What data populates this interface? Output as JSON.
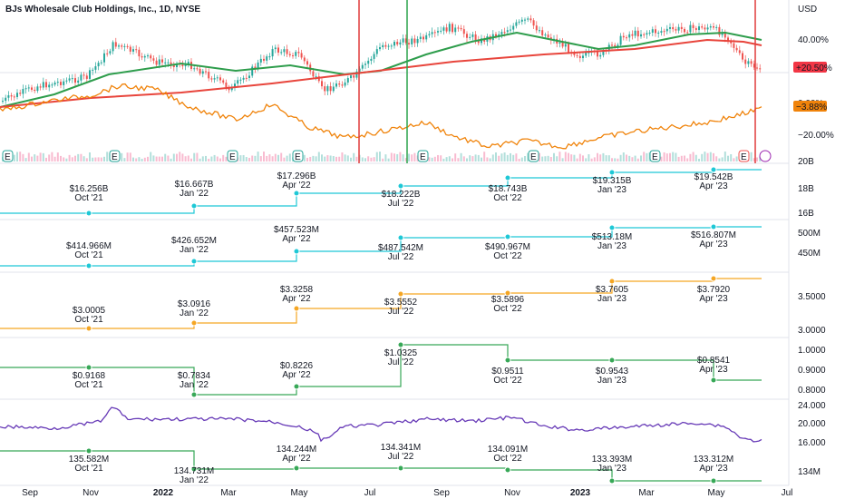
{
  "header": {
    "title": "BJs Wholesale Club Holdings, Inc., 1D, NYSE",
    "currency": "USD"
  },
  "colors": {
    "up": "#26a69a",
    "down": "#ef5350",
    "sma_short": "#2e9d4c",
    "sma_long": "#e8453c",
    "orange": "#f0830a",
    "revenue": "#1ec8d6",
    "eps": "#f5a623",
    "green_step": "#37a857",
    "purple": "#673ab7",
    "vline_red": "#e03c3c",
    "vline_green": "#2ca34c"
  },
  "chart_data": [
    {
      "type": "line",
      "name": "price-panel",
      "y_ticks": [
        "40.00%",
        "0.00%",
        "−20.00%"
      ],
      "badges": [
        {
          "text": "+20.50%",
          "color": "#f23645"
        },
        {
          "text": "−3.88%",
          "color": "#f0830a"
        }
      ],
      "earnings_markers": [
        "E",
        "E",
        "E",
        "E",
        "E",
        "E",
        "E",
        "E"
      ]
    },
    {
      "type": "line",
      "name": "revenue",
      "y_ticks": [
        "20B",
        "18B",
        "16B"
      ],
      "points": [
        {
          "value": "$16.256B",
          "period": "Oct '21"
        },
        {
          "value": "$16.667B",
          "period": "Jan '22"
        },
        {
          "value": "$17.296B",
          "period": "Apr '22"
        },
        {
          "value": "$18.222B",
          "period": "Jul '22"
        },
        {
          "value": "$18.743B",
          "period": "Oct '22"
        },
        {
          "value": "$19.315B",
          "period": "Jan '23"
        },
        {
          "value": "$19.542B",
          "period": "Apr '23"
        }
      ]
    },
    {
      "type": "line",
      "name": "net-income",
      "y_ticks": [
        "500M",
        "450M"
      ],
      "points": [
        {
          "value": "$414.966M",
          "period": "Oct '21"
        },
        {
          "value": "$426.652M",
          "period": "Jan '22"
        },
        {
          "value": "$457.523M",
          "period": "Apr '22"
        },
        {
          "value": "$487.542M",
          "period": "Jul '22"
        },
        {
          "value": "$490.967M",
          "period": "Oct '22"
        },
        {
          "value": "$513.18M",
          "period": "Jan '23"
        },
        {
          "value": "$516.807M",
          "period": "Apr '23"
        }
      ]
    },
    {
      "type": "line",
      "name": "eps",
      "y_ticks": [
        "3.5000",
        "3.0000"
      ],
      "points": [
        {
          "value": "$3.0005",
          "period": "Oct '21"
        },
        {
          "value": "$3.0916",
          "period": "Jan '22"
        },
        {
          "value": "$3.3258",
          "period": "Apr '22"
        },
        {
          "value": "$3.5552",
          "period": "Jul '22"
        },
        {
          "value": "$3.5896",
          "period": "Oct '22"
        },
        {
          "value": "$3.7605",
          "period": "Jan '23"
        },
        {
          "value": "$3.7920",
          "period": "Apr '23"
        }
      ]
    },
    {
      "type": "line",
      "name": "eps-quarterly",
      "y_ticks": [
        "1.0000",
        "0.9000",
        "0.8000"
      ],
      "points": [
        {
          "value": "$0.9168",
          "period": "Oct '21"
        },
        {
          "value": "$0.7834",
          "period": "Jan '22"
        },
        {
          "value": "$0.8226",
          "period": "Apr '22"
        },
        {
          "value": "$1.0325",
          "period": "Jul '22"
        },
        {
          "value": "$0.9511",
          "period": "Oct '22"
        },
        {
          "value": "$0.9543",
          "period": "Jan '23"
        },
        {
          "value": "$0.8541",
          "period": "Apr '23"
        }
      ]
    },
    {
      "type": "line",
      "name": "pe-and-shares",
      "y_ticks": [
        "24.000",
        "20.000",
        "16.000",
        "134M"
      ],
      "points": [
        {
          "value": "135.582M",
          "period": "Oct '21"
        },
        {
          "value": "134.731M",
          "period": "Jan '22"
        },
        {
          "value": "134.244M",
          "period": "Apr '22"
        },
        {
          "value": "134.341M",
          "period": "Jul '22"
        },
        {
          "value": "134.091M",
          "period": "Oct '22"
        },
        {
          "value": "133.393M",
          "period": "Jan '23"
        },
        {
          "value": "133.312M",
          "period": "Apr '23"
        }
      ]
    }
  ],
  "x_axis": [
    "Sep",
    "Nov",
    "2022",
    "Mar",
    "May",
    "Jul",
    "Sep",
    "Nov",
    "2023",
    "Mar",
    "May",
    "Jul"
  ]
}
